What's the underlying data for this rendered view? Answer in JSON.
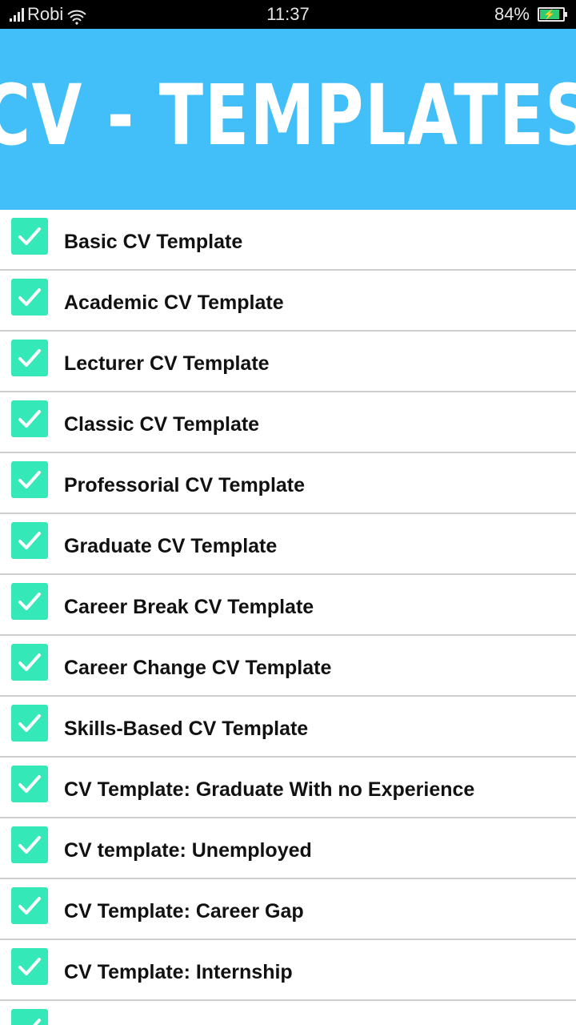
{
  "status_bar": {
    "carrier": "Robi",
    "time": "11:37",
    "battery": "84%",
    "battery_level": 84,
    "icons": [
      "signal-icon",
      "wifi-icon",
      "battery-charging-icon"
    ]
  },
  "header": {
    "title": "CV - TEMPLATES",
    "background": "#42bff8"
  },
  "colors": {
    "checkbox": "#35e8b8"
  },
  "items": [
    {
      "label": "Basic CV Template",
      "checked": true
    },
    {
      "label": "Academic CV Template",
      "checked": true
    },
    {
      "label": "Lecturer CV Template",
      "checked": true
    },
    {
      "label": "Classic CV Template",
      "checked": true
    },
    {
      "label": "Professorial CV Template",
      "checked": true
    },
    {
      "label": "Graduate CV Template",
      "checked": true
    },
    {
      "label": "Career Break CV Template",
      "checked": true
    },
    {
      "label": "Career Change CV Template",
      "checked": true
    },
    {
      "label": "Skills-Based CV Template",
      "checked": true
    },
    {
      "label": "CV Template: Graduate With no Experience",
      "checked": true
    },
    {
      "label": "CV template: Unemployed",
      "checked": true
    },
    {
      "label": "CV Template: Career Gap",
      "checked": true
    },
    {
      "label": "CV Template: Internship",
      "checked": true
    },
    {
      "label": "",
      "checked": true
    }
  ]
}
